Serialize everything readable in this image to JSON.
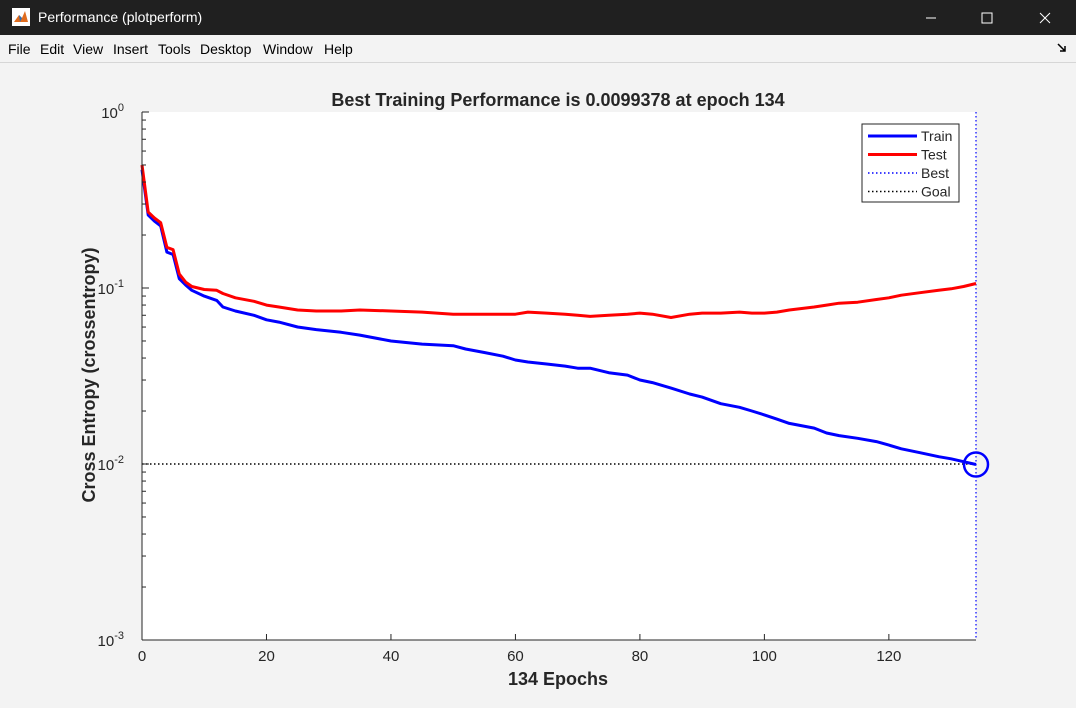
{
  "window": {
    "title": "Performance (plotperform)",
    "controls": {
      "minimize": "minimize-icon",
      "maximize": "maximize-icon",
      "close": "close-icon"
    },
    "app_icon": "matlab-icon"
  },
  "menubar": {
    "items": [
      "File",
      "Edit",
      "View",
      "Insert",
      "Tools",
      "Desktop",
      "Window",
      "Help"
    ],
    "dock_icon": "dock-arrow-icon"
  },
  "chart_data": {
    "type": "line",
    "title": "Best Training Performance is 0.0099378 at epoch 134",
    "xlabel": "134 Epochs",
    "ylabel": "Cross Entropy  (crossentropy)",
    "xlim": [
      0,
      134
    ],
    "ylim": [
      0.001,
      1
    ],
    "yscale": "log",
    "xticks": [
      0,
      20,
      40,
      60,
      80,
      100,
      120
    ],
    "yticks": [
      {
        "value": 1,
        "base": "10",
        "exp": "0"
      },
      {
        "value": 0.1,
        "base": "10",
        "exp": "-1"
      },
      {
        "value": 0.01,
        "base": "10",
        "exp": "-2"
      },
      {
        "value": 0.001,
        "base": "10",
        "exp": "-3"
      }
    ],
    "grid": false,
    "legend_position": "top-right",
    "series": [
      {
        "name": "Train",
        "color": "#0000ff",
        "style": "solid",
        "x": [
          0,
          1,
          2,
          3,
          4,
          5,
          6,
          7,
          8,
          10,
          12,
          13,
          15,
          18,
          20,
          22,
          25,
          28,
          32,
          35,
          40,
          45,
          50,
          52,
          55,
          58,
          60,
          62,
          65,
          68,
          70,
          72,
          75,
          78,
          80,
          82,
          85,
          88,
          90,
          93,
          96,
          98,
          100,
          102,
          104,
          108,
          110,
          112,
          115,
          118,
          120,
          122,
          125,
          128,
          130,
          132,
          134
        ],
        "y": [
          0.47,
          0.26,
          0.24,
          0.225,
          0.16,
          0.155,
          0.113,
          0.104,
          0.097,
          0.09,
          0.085,
          0.078,
          0.074,
          0.07,
          0.066,
          0.064,
          0.06,
          0.058,
          0.056,
          0.054,
          0.05,
          0.048,
          0.047,
          0.045,
          0.043,
          0.041,
          0.039,
          0.038,
          0.037,
          0.036,
          0.035,
          0.035,
          0.033,
          0.032,
          0.03,
          0.029,
          0.027,
          0.025,
          0.024,
          0.022,
          0.021,
          0.02,
          0.019,
          0.018,
          0.017,
          0.016,
          0.015,
          0.0145,
          0.014,
          0.0134,
          0.0128,
          0.0122,
          0.0116,
          0.011,
          0.0107,
          0.0103,
          0.0099378
        ]
      },
      {
        "name": "Test",
        "color": "#ff0000",
        "style": "solid",
        "x": [
          0,
          1,
          2,
          3,
          4,
          5,
          6,
          7,
          8,
          10,
          12,
          13,
          15,
          18,
          20,
          22,
          25,
          28,
          32,
          35,
          40,
          45,
          50,
          52,
          55,
          58,
          60,
          62,
          65,
          68,
          70,
          72,
          75,
          78,
          80,
          82,
          85,
          88,
          90,
          93,
          96,
          98,
          100,
          102,
          104,
          108,
          110,
          112,
          115,
          118,
          120,
          122,
          125,
          128,
          130,
          132,
          134
        ],
        "y": [
          0.5,
          0.27,
          0.25,
          0.235,
          0.17,
          0.165,
          0.12,
          0.108,
          0.102,
          0.098,
          0.097,
          0.093,
          0.088,
          0.084,
          0.08,
          0.078,
          0.075,
          0.074,
          0.074,
          0.075,
          0.074,
          0.073,
          0.071,
          0.071,
          0.071,
          0.071,
          0.071,
          0.073,
          0.072,
          0.071,
          0.07,
          0.069,
          0.07,
          0.071,
          0.072,
          0.071,
          0.068,
          0.071,
          0.072,
          0.072,
          0.073,
          0.072,
          0.072,
          0.073,
          0.075,
          0.078,
          0.08,
          0.082,
          0.083,
          0.086,
          0.088,
          0.091,
          0.094,
          0.097,
          0.099,
          0.102,
          0.106
        ]
      }
    ],
    "best": {
      "name": "Best",
      "epoch": 134,
      "value": 0.0099378,
      "color": "#0000ff",
      "style": "dotted"
    },
    "goal": {
      "name": "Goal",
      "value": 0.01,
      "color": "#000000",
      "style": "dotted"
    }
  }
}
